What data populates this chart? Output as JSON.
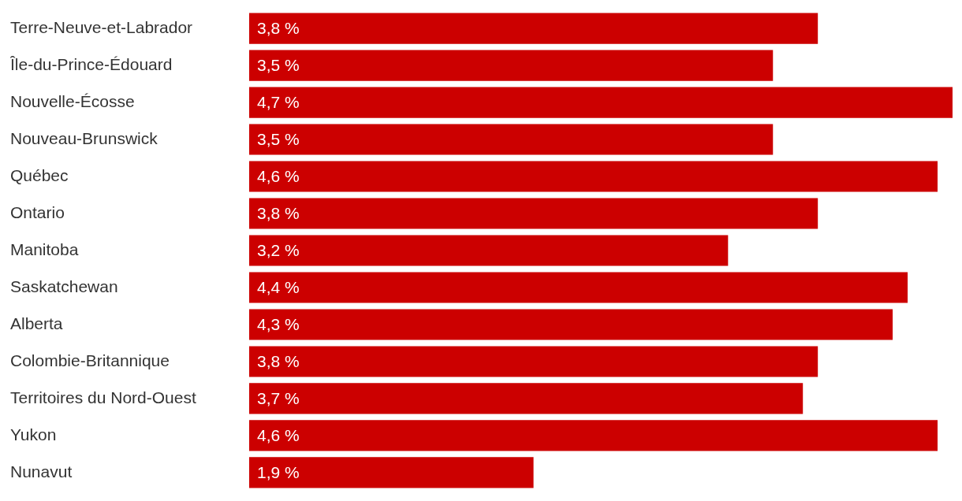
{
  "chart_data": {
    "type": "bar",
    "orientation": "horizontal",
    "categories": [
      "Terre-Neuve-et-Labrador",
      "Île-du-Prince-Édouard",
      "Nouvelle-Écosse",
      "Nouveau-Brunswick",
      "Québec",
      "Ontario",
      "Manitoba",
      "Saskatchewan",
      "Alberta",
      "Colombie-Britannique",
      "Territoires du Nord-Ouest",
      "Yukon",
      "Nunavut"
    ],
    "values": [
      3.8,
      3.5,
      4.7,
      3.5,
      4.6,
      3.8,
      3.2,
      4.4,
      4.3,
      3.8,
      3.7,
      4.6,
      1.9
    ],
    "value_labels": [
      "3,8 %",
      "3,5 %",
      "4,7 %",
      "3,5 %",
      "4,6 %",
      "3,8 %",
      "3,2 %",
      "4,4 %",
      "4,3 %",
      "3,8 %",
      "3,7 %",
      "4,6 %",
      "1,9 %"
    ],
    "color": "#cc0000",
    "xlim": [
      0,
      4.7
    ],
    "tick_labels": "y"
  }
}
